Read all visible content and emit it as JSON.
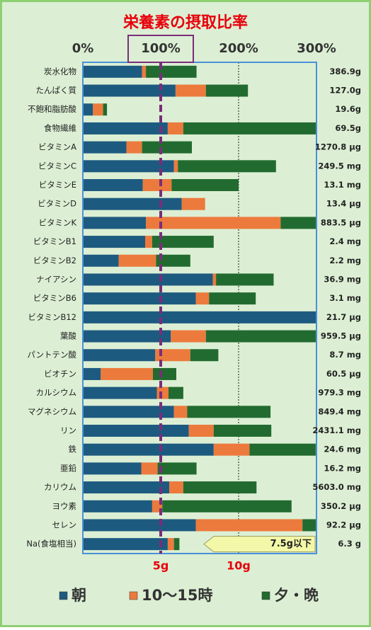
{
  "chart_data": {
    "type": "bar",
    "orientation": "horizontal",
    "stacked": true,
    "title": "栄養素の摂取比率",
    "categories": [
      "炭水化物",
      "たんぱく質",
      "不飽和脂肪酸",
      "食物繊維",
      "ビタミンA",
      "ビタミンC",
      "ビタミンE",
      "ビタミンD",
      "ビタミンK",
      "ビタミンB1",
      "ビタミンB2",
      "ナイアシン",
      "ビタミンB6",
      "ビタミンB12",
      "葉酸",
      "パントテン酸",
      "ビオチン",
      "カルシウム",
      "マグネシウム",
      "リン",
      "鉄",
      "亜鉛",
      "カリウム",
      "ヨウ素",
      "セレン",
      "Na(食塩相当)"
    ],
    "amounts": [
      "386.9g",
      "127.0g",
      "19.6g",
      "69.5g",
      "1270.8 μg",
      "249.5 mg",
      "13.1 mg",
      "13.4 μg",
      "883.5 μg",
      "2.4 mg",
      "2.2 mg",
      "36.9 mg",
      "3.1 mg",
      "21.7 μg",
      "959.5 μg",
      "8.7 mg",
      "60.5 μg",
      "979.3 mg",
      "849.4 mg",
      "2431.1 mg",
      "24.6 mg",
      "16.2 mg",
      "5603.0 mg",
      "350.2 μg",
      "92.2 μg",
      "6.3 g"
    ],
    "series": [
      {
        "name": "朝",
        "color": "#1d5a80",
        "values": [
          76,
          119,
          13,
          109,
          56,
          117,
          77,
          127,
          81,
          80,
          46,
          167,
          145,
          300,
          113,
          93,
          23,
          95,
          117,
          136,
          168,
          75,
          111,
          89,
          145,
          109
        ]
      },
      {
        "name": "10～15時",
        "color": "#ec7a3c",
        "values": [
          5,
          39,
          13,
          20,
          20,
          5,
          37,
          30,
          173,
          9,
          48,
          4,
          17,
          0,
          45,
          45,
          67,
          15,
          17,
          32,
          46,
          21,
          18,
          13,
          137,
          8
        ]
      },
      {
        "name": "夕・晩",
        "color": "#226b30",
        "values": [
          65,
          54,
          5,
          171,
          64,
          126,
          86,
          0,
          46,
          79,
          44,
          74,
          60,
          0,
          142,
          36,
          30,
          19,
          107,
          74,
          85,
          50,
          94,
          166,
          18,
          7
        ]
      }
    ],
    "xlim": [
      0,
      300
    ],
    "xticks": [
      {
        "value": 0,
        "label": "0%"
      },
      {
        "value": 100,
        "label": "100%"
      },
      {
        "value": 200,
        "label": "200%"
      },
      {
        "value": 300,
        "label": "300%"
      }
    ],
    "secondary_ticks": [
      {
        "value": 100,
        "label": "5g"
      },
      {
        "value": 200,
        "label": "10g"
      }
    ],
    "reference_line": {
      "value": 100,
      "color": "#7b2c7b"
    },
    "annotation": "7.5g以下",
    "grid": true
  }
}
